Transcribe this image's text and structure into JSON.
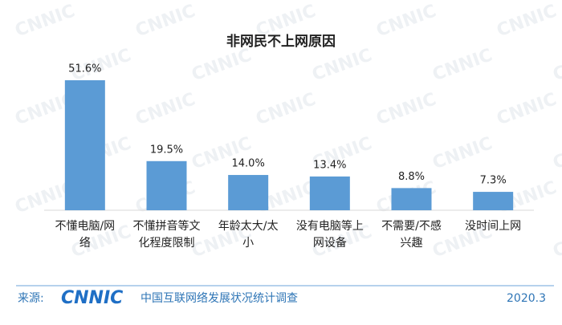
{
  "chart_data": {
    "type": "bar",
    "title": "非网民不上网原因",
    "categories": [
      "不懂电脑/网络",
      "不懂拼音等文化程度限制",
      "年龄太大/太小",
      "没有电脑等上网设备",
      "不需要/不感兴趣",
      "没时间上网"
    ],
    "values": [
      51.6,
      19.5,
      14.0,
      13.4,
      8.8,
      7.3
    ],
    "value_labels": [
      "51.6%",
      "19.5%",
      "14.0%",
      "13.4%",
      "8.8%",
      "7.3%"
    ],
    "color": "#5b9bd5"
  },
  "footer": {
    "source": "来源:",
    "logo": "CNNIC",
    "survey": "中国互联网络发展状况统计调查",
    "date": "2020.3"
  }
}
